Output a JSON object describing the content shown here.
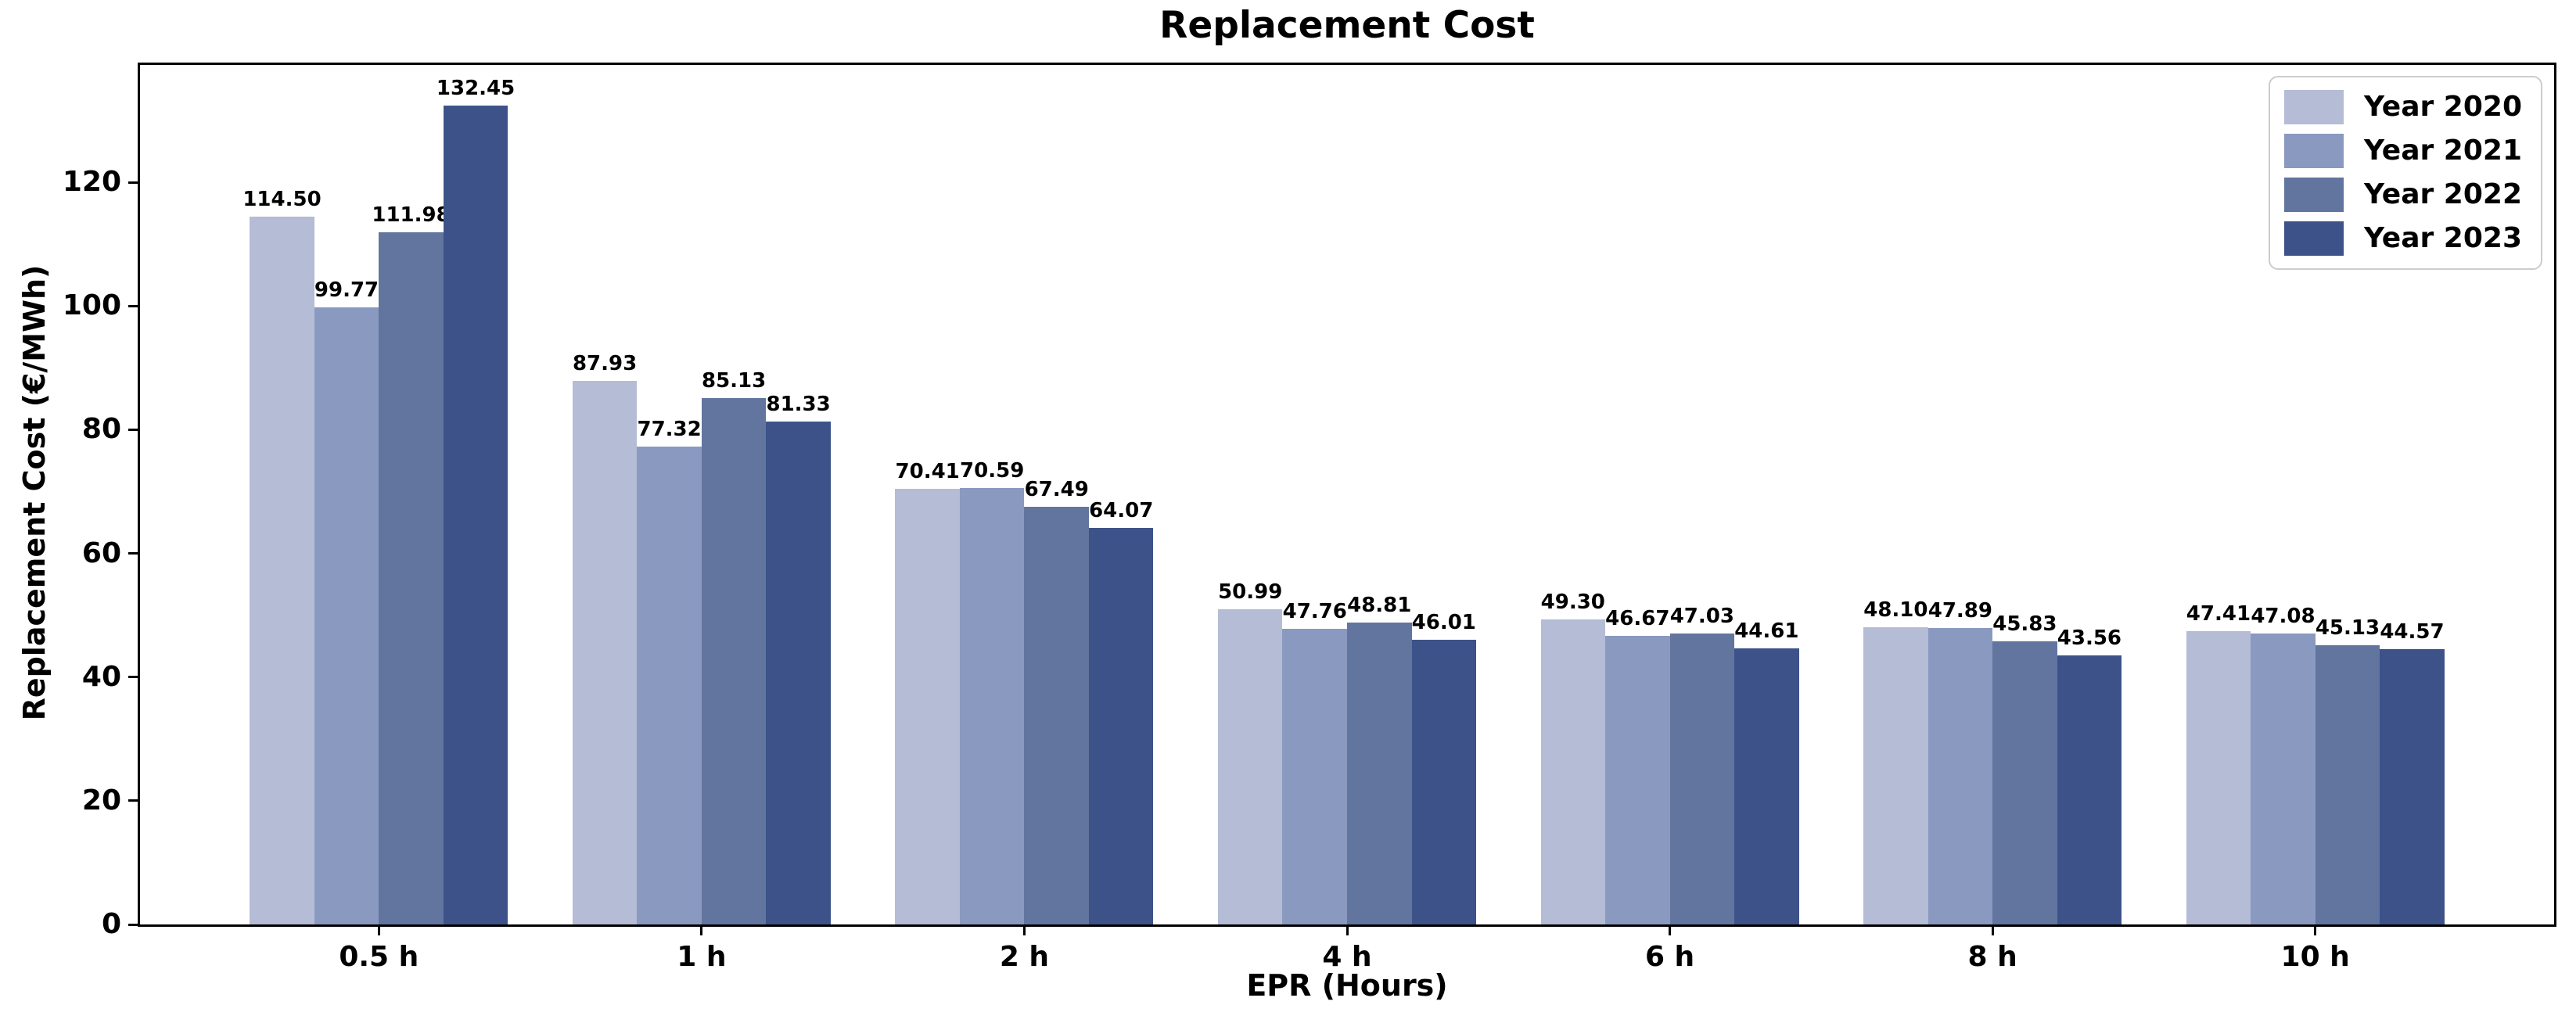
{
  "chart_data": {
    "type": "bar",
    "title": "Replacement Cost",
    "xlabel": "EPR (Hours)",
    "ylabel": "Replacement Cost (€/MWh)",
    "categories": [
      "0.5 h",
      "1 h",
      "2 h",
      "4 h",
      "6 h",
      "8 h",
      "10 h"
    ],
    "series": [
      {
        "name": "Year 2020",
        "color": "#b4bcd6",
        "values": [
          114.5,
          87.93,
          70.41,
          50.99,
          49.3,
          48.1,
          47.41
        ]
      },
      {
        "name": "Year 2021",
        "color": "#8a99bf",
        "values": [
          99.77,
          77.32,
          70.59,
          47.76,
          46.67,
          47.89,
          47.08
        ]
      },
      {
        "name": "Year 2022",
        "color": "#62759f",
        "values": [
          111.98,
          85.13,
          67.49,
          48.81,
          47.03,
          45.83,
          45.13
        ]
      },
      {
        "name": "Year 2023",
        "color": "#3c5289",
        "values": [
          132.45,
          81.33,
          64.07,
          46.01,
          44.61,
          43.56,
          44.57
        ]
      }
    ],
    "value_label_format": "2dp",
    "ylim": [
      0,
      139
    ],
    "yticks": [
      0,
      20,
      40,
      60,
      80,
      100,
      120
    ],
    "bar_width_units": 0.2,
    "x_edge_padding_units": 0.74,
    "legend_position": "upper right",
    "grid": false,
    "axis_color": "#000000",
    "background_color": "#ffffff"
  }
}
